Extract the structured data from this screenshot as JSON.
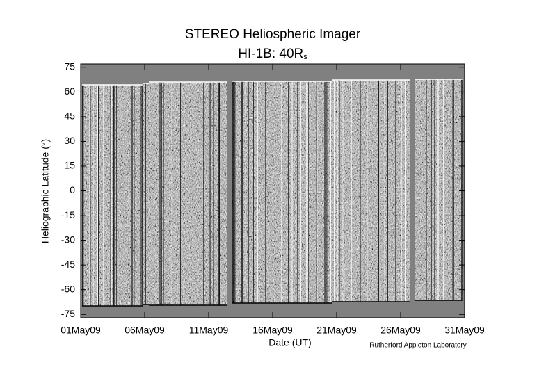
{
  "chart_data": {
    "type": "image",
    "title": "STEREO Heliospheric Imager",
    "subtitle": "HI-1B: 40R",
    "subtitle_subscript": "s",
    "xlabel": "Date (UT)",
    "ylabel": "Heliographic Latitude (°)",
    "credit": "Rutherford Appleton Laboratory",
    "xlim": [
      1,
      31
    ],
    "xticks": [
      {
        "value": 1,
        "label": "01May09"
      },
      {
        "value": 6,
        "label": "06May09"
      },
      {
        "value": 11,
        "label": "11May09"
      },
      {
        "value": 16,
        "label": "16May09"
      },
      {
        "value": 21,
        "label": "21May09"
      },
      {
        "value": 26,
        "label": "26May09"
      },
      {
        "value": 31,
        "label": "31May09"
      }
    ],
    "ylim": [
      -77,
      77
    ],
    "yticks": [
      -75,
      -60,
      -45,
      -30,
      -15,
      0,
      15,
      30,
      45,
      60,
      75
    ]
  }
}
